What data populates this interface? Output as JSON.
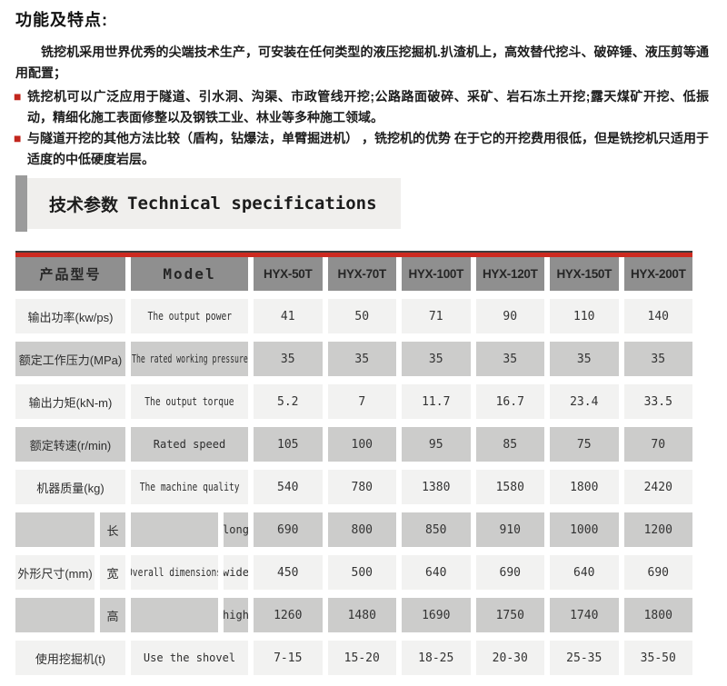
{
  "colors": {
    "accent_red": "#cd2a20",
    "bullet_red": "#c2261d",
    "header_gray": "#8f8f8f",
    "row_light": "#f2f2f1",
    "row_dark": "#cccccb"
  },
  "intro": {
    "title": "功能及特点:",
    "bullet_icon": "■",
    "para1": "铣挖机采用世界优秀的尖端技术生产，可安装在任何类型的液压挖掘机.扒渣机上，高效替代挖斗、破碎锤、液压剪等通用配置；",
    "bullets": [
      "铣挖机可以广泛应用于隧道、引水洞、沟渠、市政管线开挖;公路路面破碎、采矿、岩石冻土开挖;露天煤矿开挖、低振动，精细化施工表面修整以及钢铁工业、林业等多种施工领域。",
      "与隧道开挖的其他方法比较（盾构，钻爆法，单臂掘进机） ，铣挖机的优势 在于它的开挖费用很低，但是铣挖机只适用于适度的中低硬度岩层。"
    ]
  },
  "section": {
    "title_zh": "技术参数",
    "title_en": "Technical specifications"
  },
  "table": {
    "header": [
      "产品型号",
      "Model",
      "HYX-50T",
      "HYX-70T",
      "HYX-100T",
      "HYX-120T",
      "HYX-150T",
      "HYX-200T"
    ],
    "rows": [
      {
        "zh": "输出功率(kw/ps)",
        "en": "The output power",
        "values": [
          "41",
          "50",
          "71",
          "90",
          "110",
          "140"
        ],
        "shade": "light",
        "split": false
      },
      {
        "zh": "额定工作压力(MPa)",
        "en": "The rated working pressure",
        "values": [
          "35",
          "35",
          "35",
          "35",
          "35",
          "35"
        ],
        "shade": "dark",
        "split": false
      },
      {
        "zh": "输出力矩(kN-m)",
        "en": "The output torque",
        "values": [
          "5.2",
          "7",
          "11.7",
          "16.7",
          "23.4",
          "33.5"
        ],
        "shade": "light",
        "split": false
      },
      {
        "zh": "额定转速(r/min)",
        "en": "Rated speed",
        "values": [
          "105",
          "100",
          "95",
          "85",
          "75",
          "70"
        ],
        "shade": "dark",
        "split": false
      },
      {
        "zh": "机器质量(kg)",
        "en": "The machine quality",
        "values": [
          "540",
          "780",
          "1380",
          "1580",
          "1800",
          "2420"
        ],
        "shade": "light",
        "split": false
      },
      {
        "zh": "",
        "sub_zh": "长",
        "en": "",
        "sub_en": "long",
        "values": [
          "690",
          "800",
          "850",
          "910",
          "1000",
          "1200"
        ],
        "shade": "dark",
        "split": true
      },
      {
        "zh": "外形尺寸(mm)",
        "sub_zh": "宽",
        "en": "Overall dimensions",
        "sub_en": "wide",
        "values": [
          "450",
          "500",
          "640",
          "690",
          "640",
          "690"
        ],
        "shade": "light",
        "split": true
      },
      {
        "zh": "",
        "sub_zh": "高",
        "en": "",
        "sub_en": "high",
        "values": [
          "1260",
          "1480",
          "1690",
          "1750",
          "1740",
          "1800"
        ],
        "shade": "dark",
        "split": true
      },
      {
        "zh": "使用挖掘机(t)",
        "en": "Use the shovel",
        "values": [
          "7-15",
          "15-20",
          "18-25",
          "20-30",
          "25-35",
          "35-50"
        ],
        "shade": "light",
        "split": false
      }
    ]
  }
}
